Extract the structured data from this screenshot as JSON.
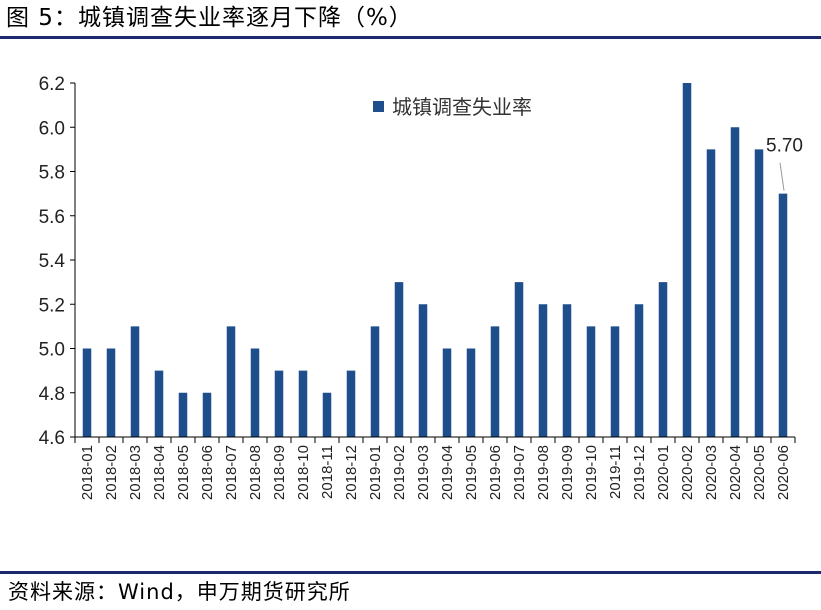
{
  "figure": {
    "title": "图 5：城镇调查失业率逐月下降（%）",
    "source": "资料来源：Wind，申万期货研究所"
  },
  "colors": {
    "bar": "#1f4e8c",
    "rule": "#1a2a6c",
    "axis": "#000000"
  },
  "chart_data": {
    "type": "bar",
    "title": "",
    "xlabel": "",
    "ylabel": "",
    "ylim": [
      4.6,
      6.2
    ],
    "yticks": [
      4.6,
      4.8,
      5.0,
      5.2,
      5.4,
      5.6,
      5.8,
      6.0,
      6.2
    ],
    "ytick_labels": [
      "4.6",
      "4.8",
      "5.0",
      "5.2",
      "5.4",
      "5.6",
      "5.8",
      "6.0",
      "6.2"
    ],
    "grid": false,
    "legend_position": "top-center",
    "categories": [
      "2018-01",
      "2018-02",
      "2018-03",
      "2018-04",
      "2018-05",
      "2018-06",
      "2018-07",
      "2018-08",
      "2018-09",
      "2018-10",
      "2018-11",
      "2018-12",
      "2019-01",
      "2019-02",
      "2019-03",
      "2019-04",
      "2019-05",
      "2019-06",
      "2019-07",
      "2019-08",
      "2019-09",
      "2019-10",
      "2019-11",
      "2019-12",
      "2020-01",
      "2020-02",
      "2020-03",
      "2020-04",
      "2020-05",
      "2020-06"
    ],
    "series": [
      {
        "name": "城镇调查失业率",
        "values": [
          5.0,
          5.0,
          5.1,
          4.9,
          4.8,
          4.8,
          5.1,
          5.0,
          4.9,
          4.9,
          4.8,
          4.9,
          5.1,
          5.3,
          5.2,
          5.0,
          5.0,
          5.1,
          5.3,
          5.2,
          5.2,
          5.1,
          5.1,
          5.2,
          5.3,
          6.2,
          5.9,
          6.0,
          5.9,
          5.7
        ]
      }
    ],
    "annotations": [
      {
        "category": "2020-06",
        "text": "5.70"
      }
    ]
  }
}
